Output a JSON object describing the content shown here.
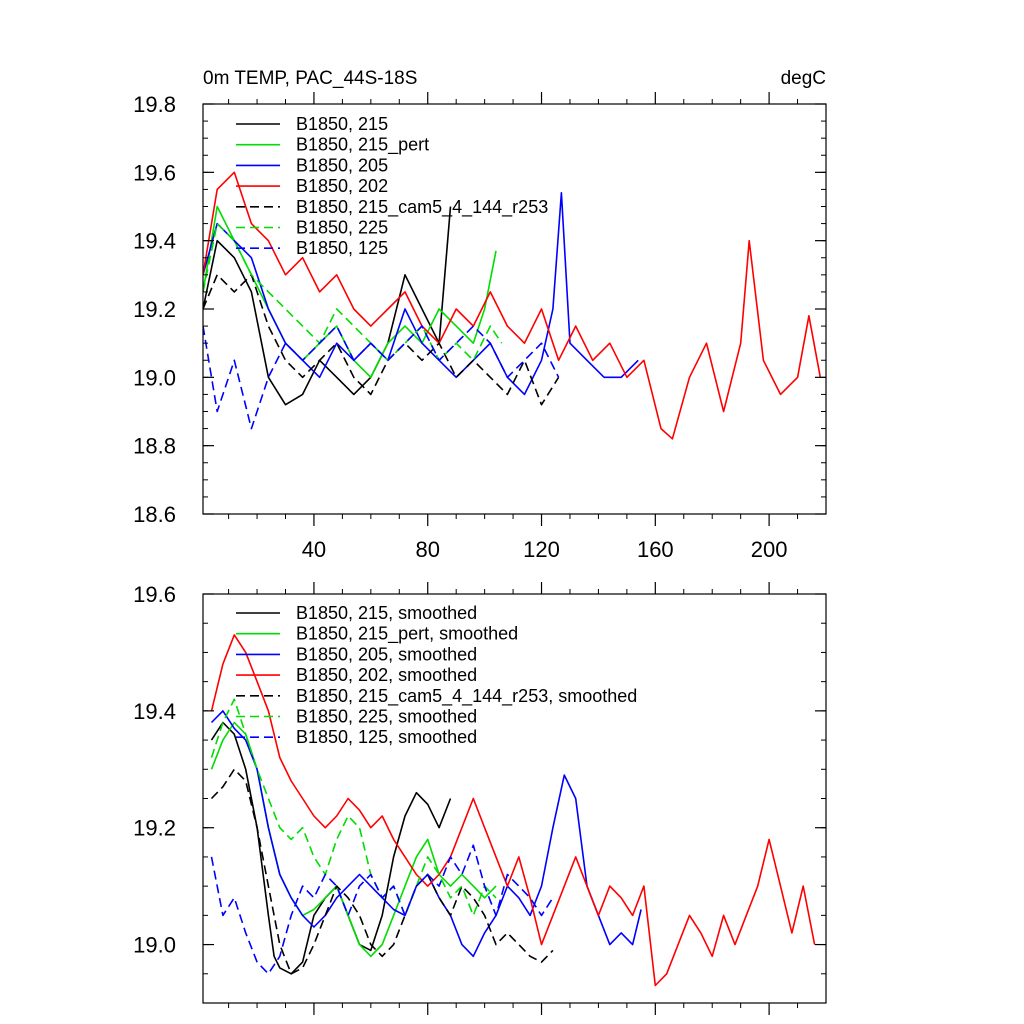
{
  "chart_data": [
    {
      "type": "line",
      "title": "0m TEMP, PAC_44S-18S",
      "units": "degC",
      "xlabel": "",
      "ylabel": "",
      "xlim": [
        1,
        220
      ],
      "ylim": [
        18.6,
        19.8
      ],
      "xticks": [
        40,
        80,
        120,
        160,
        200
      ],
      "yticks": [
        18.6,
        18.8,
        19.0,
        19.2,
        19.4,
        19.6,
        19.8
      ],
      "yticklabels": [
        "18.6",
        "18.8",
        "19.0",
        "19.2",
        "19.4",
        "19.6",
        "19.8"
      ],
      "legend": "top-left",
      "series": [
        {
          "name": "B1850, 215",
          "color": "#000000",
          "dash": "solid",
          "x": [
            1,
            6,
            12,
            18,
            24,
            30,
            36,
            42,
            48,
            54,
            60,
            66,
            72,
            78,
            84,
            88
          ],
          "values": [
            19.2,
            19.4,
            19.35,
            19.25,
            19.0,
            18.92,
            18.95,
            19.05,
            19.0,
            18.95,
            19.0,
            19.1,
            19.3,
            19.2,
            19.1,
            19.5
          ]
        },
        {
          "name": "B1850, 215_pert",
          "color": "#00dd00",
          "dash": "solid",
          "x": [
            1,
            6,
            12,
            18,
            24,
            30,
            36,
            42,
            48,
            54,
            60,
            66,
            72,
            78,
            84,
            90,
            96,
            100,
            104
          ],
          "values": [
            19.25,
            19.5,
            19.4,
            19.3,
            19.2,
            19.1,
            19.05,
            19.1,
            19.15,
            19.05,
            19.0,
            19.1,
            19.15,
            19.1,
            19.2,
            19.15,
            19.1,
            19.2,
            19.37
          ]
        },
        {
          "name": "B1850, 205",
          "color": "#0000ff",
          "dash": "solid",
          "x": [
            1,
            6,
            12,
            18,
            24,
            30,
            36,
            42,
            48,
            54,
            60,
            66,
            72,
            78,
            84,
            90,
            96,
            102,
            108,
            114,
            120,
            124,
            127,
            130,
            136,
            142,
            148,
            154
          ],
          "values": [
            19.3,
            19.45,
            19.4,
            19.35,
            19.2,
            19.1,
            19.05,
            19.0,
            19.1,
            19.05,
            19.1,
            19.05,
            19.2,
            19.1,
            19.05,
            19.0,
            19.05,
            19.1,
            19.0,
            18.95,
            19.05,
            19.2,
            19.54,
            19.1,
            19.05,
            19.0,
            19.0,
            19.05
          ]
        },
        {
          "name": "B1850, 202",
          "color": "#ff0000",
          "dash": "solid",
          "x": [
            1,
            6,
            12,
            18,
            24,
            30,
            36,
            42,
            48,
            54,
            60,
            66,
            72,
            78,
            84,
            90,
            96,
            102,
            108,
            114,
            120,
            126,
            132,
            138,
            144,
            150,
            156,
            162,
            166,
            172,
            178,
            184,
            190,
            193,
            198,
            204,
            210,
            214,
            218
          ],
          "values": [
            19.3,
            19.55,
            19.6,
            19.45,
            19.4,
            19.3,
            19.35,
            19.25,
            19.3,
            19.2,
            19.15,
            19.2,
            19.25,
            19.15,
            19.1,
            19.2,
            19.15,
            19.25,
            19.15,
            19.1,
            19.2,
            19.05,
            19.15,
            19.05,
            19.1,
            19.0,
            19.05,
            18.85,
            18.82,
            19.0,
            19.1,
            18.9,
            19.1,
            19.4,
            19.05,
            18.95,
            19.0,
            19.18,
            19.0
          ]
        },
        {
          "name": "B1850, 215_cam5_4_144_r253",
          "color": "#000000",
          "dash": "dash",
          "x": [
            1,
            6,
            12,
            18,
            24,
            30,
            36,
            42,
            48,
            54,
            60,
            66,
            72,
            78,
            84,
            90,
            96,
            102,
            108,
            114,
            120,
            126
          ],
          "values": [
            19.2,
            19.3,
            19.25,
            19.3,
            19.15,
            19.05,
            19.0,
            19.05,
            19.1,
            19.0,
            18.95,
            19.05,
            19.1,
            19.05,
            19.1,
            19.0,
            19.05,
            19.0,
            18.95,
            19.05,
            18.92,
            19.0
          ]
        },
        {
          "name": "B1850, 225",
          "color": "#00dd00",
          "dash": "dash",
          "x": [
            1,
            6,
            12,
            18,
            24,
            30,
            36,
            42,
            48,
            54,
            60,
            66,
            72,
            78,
            84,
            90,
            96,
            102,
            106
          ],
          "values": [
            19.25,
            19.45,
            19.4,
            19.3,
            19.25,
            19.2,
            19.15,
            19.1,
            19.2,
            19.15,
            19.1,
            19.05,
            19.1,
            19.15,
            19.05,
            19.1,
            19.05,
            19.15,
            19.1
          ]
        },
        {
          "name": "B1850, 125",
          "color": "#0000ff",
          "dash": "dash",
          "x": [
            1,
            6,
            12,
            18,
            24,
            30,
            36,
            42,
            48,
            54,
            60,
            66,
            72,
            78,
            84,
            90,
            96,
            102,
            108,
            114,
            120,
            126
          ],
          "values": [
            19.15,
            18.9,
            19.05,
            18.85,
            19.0,
            19.1,
            19.05,
            19.1,
            19.15,
            19.05,
            19.1,
            19.05,
            19.1,
            19.15,
            19.05,
            19.1,
            19.15,
            19.1,
            19.0,
            19.05,
            19.1,
            19.0
          ]
        }
      ]
    },
    {
      "type": "line",
      "title": "",
      "xlabel": "",
      "ylabel": "",
      "xlim": [
        1,
        220
      ],
      "ylim": [
        18.9,
        19.6
      ],
      "xticks": [
        40,
        80,
        120,
        160,
        200
      ],
      "yticks": [
        19.0,
        19.2,
        19.4,
        19.6
      ],
      "yticklabels": [
        "19.0",
        "19.2",
        "19.4",
        "19.6"
      ],
      "legend": "top-left",
      "series": [
        {
          "name": "B1850, 215, smoothed",
          "color": "#000000",
          "dash": "solid",
          "x": [
            4,
            8,
            12,
            16,
            20,
            24,
            26,
            28,
            32,
            36,
            40,
            44,
            48,
            52,
            56,
            60,
            64,
            68,
            72,
            76,
            80,
            84,
            88
          ],
          "values": [
            19.35,
            19.38,
            19.36,
            19.3,
            19.2,
            19.05,
            18.98,
            18.96,
            18.95,
            18.97,
            19.05,
            19.08,
            19.1,
            19.05,
            19.0,
            18.99,
            19.05,
            19.15,
            19.22,
            19.26,
            19.24,
            19.2,
            19.25
          ]
        },
        {
          "name": "B1850, 215_pert, smoothed",
          "color": "#00dd00",
          "dash": "solid",
          "x": [
            4,
            8,
            12,
            16,
            20,
            24,
            28,
            32,
            36,
            40,
            44,
            48,
            52,
            56,
            60,
            64,
            68,
            72,
            76,
            80,
            84,
            88,
            92,
            96,
            100,
            104
          ],
          "values": [
            19.3,
            19.35,
            19.38,
            19.36,
            19.3,
            19.2,
            19.12,
            19.08,
            19.05,
            19.06,
            19.08,
            19.1,
            19.05,
            19.0,
            18.98,
            19.0,
            19.05,
            19.1,
            19.15,
            19.18,
            19.12,
            19.1,
            19.12,
            19.1,
            19.08,
            19.1
          ]
        },
        {
          "name": "B1850, 205, smoothed",
          "color": "#0000ff",
          "dash": "solid",
          "x": [
            4,
            8,
            12,
            16,
            20,
            24,
            28,
            32,
            36,
            40,
            44,
            48,
            52,
            56,
            60,
            64,
            68,
            72,
            76,
            80,
            84,
            88,
            92,
            96,
            100,
            104,
            108,
            112,
            116,
            120,
            124,
            128,
            132,
            136,
            140,
            144,
            148,
            152,
            155
          ],
          "values": [
            19.38,
            19.4,
            19.37,
            19.35,
            19.3,
            19.2,
            19.12,
            19.08,
            19.05,
            19.03,
            19.05,
            19.08,
            19.1,
            19.12,
            19.1,
            19.08,
            19.06,
            19.05,
            19.1,
            19.12,
            19.08,
            19.05,
            19.0,
            18.98,
            19.02,
            19.05,
            19.1,
            19.08,
            19.05,
            19.1,
            19.2,
            19.29,
            19.25,
            19.1,
            19.05,
            19.0,
            19.02,
            19.0,
            19.06
          ]
        },
        {
          "name": "B1850, 202, smoothed",
          "color": "#ff0000",
          "dash": "solid",
          "x": [
            4,
            8,
            12,
            16,
            20,
            24,
            28,
            32,
            36,
            40,
            44,
            48,
            52,
            56,
            60,
            64,
            68,
            72,
            76,
            80,
            84,
            88,
            92,
            96,
            100,
            104,
            108,
            112,
            116,
            120,
            124,
            128,
            132,
            136,
            140,
            144,
            148,
            152,
            156,
            160,
            164,
            168,
            172,
            176,
            180,
            184,
            188,
            192,
            196,
            200,
            204,
            208,
            212,
            216
          ],
          "values": [
            19.4,
            19.48,
            19.53,
            19.5,
            19.45,
            19.4,
            19.32,
            19.28,
            19.25,
            19.22,
            19.2,
            19.22,
            19.25,
            19.23,
            19.2,
            19.22,
            19.18,
            19.15,
            19.12,
            19.1,
            19.12,
            19.15,
            19.2,
            19.25,
            19.2,
            19.15,
            19.1,
            19.15,
            19.08,
            19.0,
            19.05,
            19.1,
            19.15,
            19.1,
            19.05,
            19.1,
            19.08,
            19.05,
            19.1,
            18.93,
            18.95,
            19.0,
            19.05,
            19.02,
            18.98,
            19.05,
            19.0,
            19.05,
            19.1,
            19.18,
            19.1,
            19.02,
            19.1,
            19.0
          ]
        },
        {
          "name": "B1850, 215_cam5_4_144_r253, smoothed",
          "color": "#000000",
          "dash": "dash",
          "x": [
            4,
            8,
            12,
            16,
            20,
            24,
            28,
            32,
            36,
            40,
            44,
            48,
            52,
            56,
            60,
            64,
            68,
            72,
            76,
            80,
            84,
            88,
            92,
            96,
            100,
            104,
            108,
            112,
            116,
            120,
            124
          ],
          "values": [
            19.25,
            19.27,
            19.3,
            19.28,
            19.2,
            19.1,
            19.0,
            18.95,
            18.96,
            19.0,
            19.05,
            19.1,
            19.08,
            19.05,
            19.0,
            18.98,
            19.0,
            19.05,
            19.1,
            19.12,
            19.08,
            19.05,
            19.1,
            19.08,
            19.05,
            19.0,
            19.02,
            19.0,
            18.98,
            18.97,
            18.99
          ]
        },
        {
          "name": "B1850, 225, smoothed",
          "color": "#00dd00",
          "dash": "dash",
          "x": [
            4,
            8,
            12,
            16,
            20,
            24,
            28,
            32,
            36,
            40,
            44,
            48,
            52,
            56,
            60,
            64,
            68,
            72,
            76,
            80,
            84,
            88,
            92,
            96,
            100,
            104
          ],
          "values": [
            19.32,
            19.38,
            19.42,
            19.36,
            19.3,
            19.25,
            19.2,
            19.18,
            19.2,
            19.15,
            19.12,
            19.18,
            19.22,
            19.2,
            19.12,
            19.08,
            19.1,
            19.05,
            19.1,
            19.15,
            19.12,
            19.08,
            19.1,
            19.05,
            19.1,
            19.08
          ]
        },
        {
          "name": "B1850, 125, smoothed",
          "color": "#0000ff",
          "dash": "dash",
          "x": [
            4,
            8,
            12,
            16,
            20,
            24,
            28,
            32,
            36,
            40,
            44,
            48,
            52,
            56,
            60,
            64,
            68,
            72,
            76,
            80,
            84,
            88,
            92,
            96,
            100,
            104,
            108,
            112,
            116,
            120,
            124
          ],
          "values": [
            19.15,
            19.05,
            19.08,
            19.02,
            18.97,
            18.95,
            18.98,
            19.05,
            19.1,
            19.08,
            19.12,
            19.1,
            19.05,
            19.1,
            19.12,
            19.08,
            19.1,
            19.05,
            19.1,
            19.12,
            19.1,
            19.15,
            19.12,
            19.17,
            19.1,
            19.05,
            19.12,
            19.1,
            19.08,
            19.05,
            19.08
          ]
        }
      ]
    }
  ]
}
